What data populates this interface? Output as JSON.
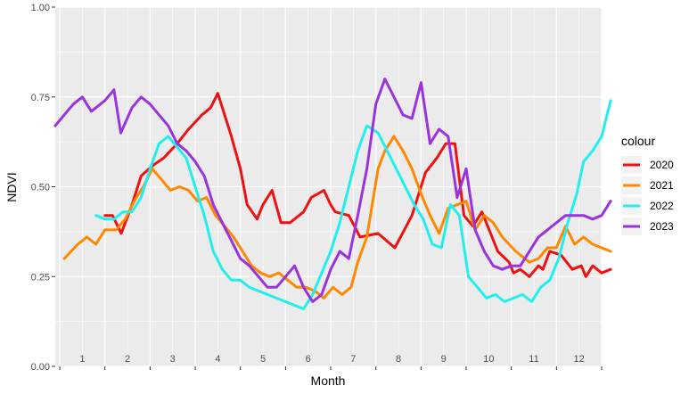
{
  "chart_data": {
    "type": "line",
    "xlabel": "Month",
    "ylabel": "NDVI",
    "ylim": [
      0,
      1
    ],
    "y_ticks": [
      "0.00",
      "0.25",
      "0.50",
      "0.75",
      "1.00"
    ],
    "x_ticks": [
      "1",
      "2",
      "3",
      "4",
      "5",
      "6",
      "7",
      "8",
      "9",
      "10",
      "11",
      "12"
    ],
    "xlim": [
      0.4,
      12.5
    ],
    "grid": true,
    "legend": {
      "title": "colour",
      "position": "right"
    },
    "series": [
      {
        "name": "2020",
        "color": "#ee1111",
        "x": [
          1.5,
          1.67,
          1.86,
          2.1,
          2.3,
          2.57,
          2.8,
          3.1,
          3.35,
          3.65,
          3.84,
          4.0,
          4.15,
          4.3,
          4.5,
          4.65,
          4.87,
          5.0,
          5.2,
          5.4,
          5.6,
          5.9,
          6.07,
          6.35,
          6.5,
          6.6,
          6.9,
          7.15,
          7.55,
          7.92,
          8.3,
          8.6,
          8.85,
          9.05,
          9.25,
          9.45,
          9.65,
          9.85,
          10.2,
          10.45,
          10.55,
          10.7,
          10.9,
          11.1,
          11.2,
          11.35,
          11.6,
          11.85,
          12.05,
          12.15,
          12.3,
          12.5,
          12.7
        ],
        "y": [
          0.42,
          0.42,
          0.37,
          0.45,
          0.53,
          0.56,
          0.58,
          0.62,
          0.66,
          0.7,
          0.72,
          0.76,
          0.7,
          0.64,
          0.55,
          0.45,
          0.41,
          0.45,
          0.49,
          0.4,
          0.4,
          0.43,
          0.47,
          0.49,
          0.45,
          0.43,
          0.42,
          0.36,
          0.37,
          0.33,
          0.42,
          0.54,
          0.58,
          0.62,
          0.62,
          0.42,
          0.39,
          0.43,
          0.32,
          0.29,
          0.26,
          0.27,
          0.25,
          0.28,
          0.27,
          0.32,
          0.31,
          0.27,
          0.28,
          0.25,
          0.28,
          0.26,
          0.27
        ]
      },
      {
        "name": "2021",
        "color": "#ff8800",
        "x": [
          0.6,
          0.9,
          1.1,
          1.3,
          1.5,
          1.75,
          1.95,
          2.15,
          2.35,
          2.55,
          2.75,
          2.95,
          3.15,
          3.35,
          3.55,
          3.75,
          3.95,
          4.15,
          4.35,
          4.55,
          4.75,
          4.95,
          5.15,
          5.35,
          5.55,
          5.75,
          5.95,
          6.15,
          6.35,
          6.55,
          6.75,
          6.95,
          7.1,
          7.3,
          7.55,
          7.7,
          7.9,
          8.1,
          8.3,
          8.5,
          8.7,
          8.9,
          9.1,
          9.3,
          9.5,
          9.7,
          9.9,
          10.1,
          10.3,
          10.6,
          10.9,
          11.1,
          11.3,
          11.5,
          11.7,
          11.9,
          12.1,
          12.3,
          12.5,
          12.7
        ],
        "y": [
          0.3,
          0.34,
          0.36,
          0.34,
          0.38,
          0.38,
          0.41,
          0.46,
          0.5,
          0.55,
          0.52,
          0.49,
          0.5,
          0.49,
          0.46,
          0.47,
          0.42,
          0.39,
          0.36,
          0.32,
          0.28,
          0.26,
          0.25,
          0.26,
          0.24,
          0.22,
          0.22,
          0.21,
          0.19,
          0.22,
          0.2,
          0.22,
          0.29,
          0.36,
          0.55,
          0.6,
          0.64,
          0.6,
          0.55,
          0.48,
          0.42,
          0.37,
          0.44,
          0.45,
          0.46,
          0.38,
          0.42,
          0.4,
          0.36,
          0.32,
          0.29,
          0.3,
          0.33,
          0.33,
          0.39,
          0.34,
          0.36,
          0.34,
          0.33,
          0.32
        ]
      },
      {
        "name": "2022",
        "color": "#22eeee",
        "x": [
          1.3,
          1.5,
          1.7,
          1.9,
          2.1,
          2.3,
          2.5,
          2.7,
          2.9,
          3.1,
          3.3,
          3.5,
          3.7,
          3.9,
          4.1,
          4.3,
          4.5,
          4.7,
          4.9,
          5.1,
          5.3,
          5.5,
          5.7,
          5.9,
          6.1,
          6.3,
          6.5,
          6.7,
          6.9,
          7.1,
          7.3,
          7.55,
          7.75,
          7.95,
          8.15,
          8.35,
          8.55,
          8.75,
          8.95,
          9.15,
          9.35,
          9.55,
          9.75,
          9.95,
          10.15,
          10.35,
          10.55,
          10.75,
          10.95,
          11.15,
          11.35,
          11.55,
          11.75,
          11.95,
          12.1,
          12.3,
          12.5,
          12.7
        ],
        "y": [
          0.42,
          0.41,
          0.41,
          0.43,
          0.43,
          0.47,
          0.55,
          0.62,
          0.64,
          0.61,
          0.58,
          0.5,
          0.42,
          0.32,
          0.27,
          0.24,
          0.24,
          0.22,
          0.21,
          0.2,
          0.19,
          0.18,
          0.17,
          0.16,
          0.2,
          0.26,
          0.32,
          0.4,
          0.5,
          0.6,
          0.67,
          0.65,
          0.6,
          0.55,
          0.5,
          0.45,
          0.41,
          0.34,
          0.33,
          0.45,
          0.42,
          0.25,
          0.22,
          0.19,
          0.2,
          0.18,
          0.19,
          0.2,
          0.18,
          0.22,
          0.24,
          0.3,
          0.4,
          0.48,
          0.57,
          0.6,
          0.64,
          0.74
        ]
      },
      {
        "name": "2023",
        "color": "#9933dd",
        "x": [
          0.4,
          0.6,
          0.8,
          1.0,
          1.2,
          1.5,
          1.7,
          1.85,
          2.1,
          2.3,
          2.5,
          2.7,
          2.9,
          3.1,
          3.3,
          3.5,
          3.7,
          3.9,
          4.1,
          4.3,
          4.5,
          4.7,
          4.9,
          5.1,
          5.3,
          5.5,
          5.7,
          5.9,
          6.1,
          6.3,
          6.5,
          6.7,
          6.9,
          7.1,
          7.3,
          7.5,
          7.7,
          7.9,
          8.1,
          8.3,
          8.5,
          8.7,
          8.9,
          9.1,
          9.3,
          9.5,
          9.7,
          9.9,
          10.1,
          10.3,
          10.5,
          10.7,
          10.9,
          11.1,
          11.3,
          11.5,
          11.7,
          11.9,
          12.1,
          12.3,
          12.5,
          12.7
        ],
        "y": [
          0.67,
          0.7,
          0.73,
          0.75,
          0.71,
          0.74,
          0.77,
          0.65,
          0.72,
          0.75,
          0.73,
          0.7,
          0.67,
          0.62,
          0.6,
          0.57,
          0.53,
          0.45,
          0.4,
          0.35,
          0.3,
          0.28,
          0.25,
          0.22,
          0.22,
          0.25,
          0.28,
          0.22,
          0.18,
          0.2,
          0.27,
          0.32,
          0.3,
          0.42,
          0.55,
          0.73,
          0.8,
          0.75,
          0.7,
          0.69,
          0.79,
          0.62,
          0.66,
          0.64,
          0.47,
          0.55,
          0.38,
          0.32,
          0.28,
          0.27,
          0.28,
          0.28,
          0.32,
          0.36,
          0.38,
          0.4,
          0.42,
          0.42,
          0.42,
          0.41,
          0.42,
          0.46
        ]
      }
    ]
  }
}
